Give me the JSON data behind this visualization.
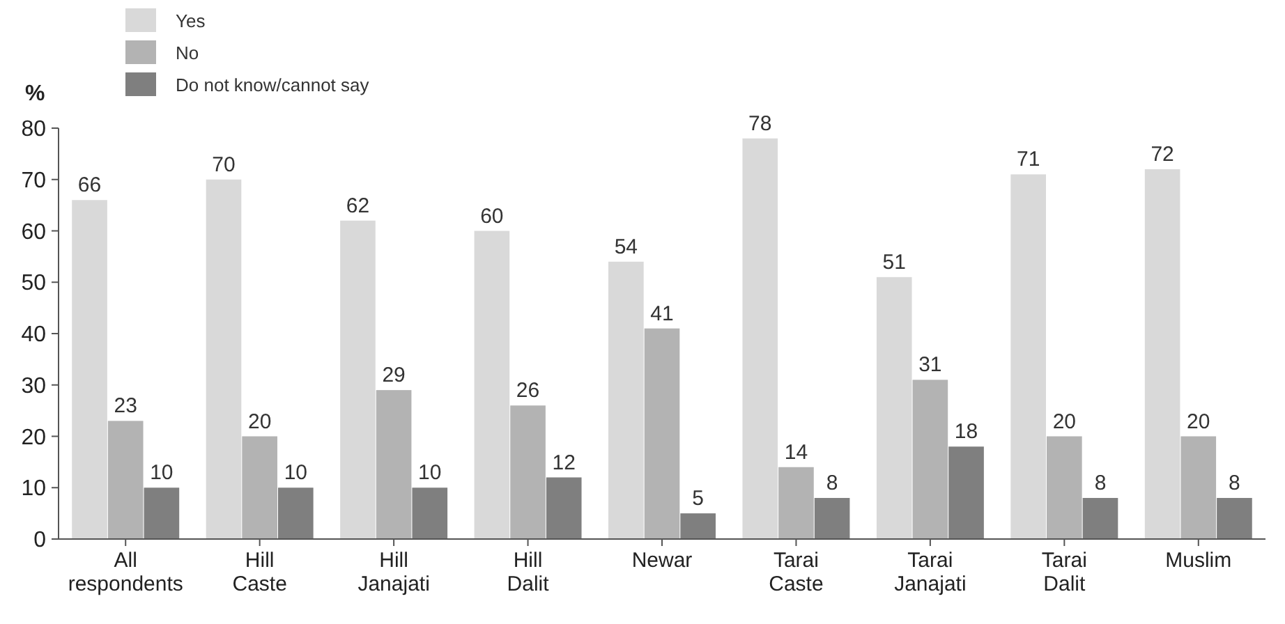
{
  "chart_data": {
    "type": "bar",
    "ylabel": "%",
    "categories": [
      "All respondents",
      "Hill Caste",
      "Hill Janajati",
      "Hill Dalit",
      "Newar",
      "Tarai Caste",
      "Tarai Janajati",
      "Tarai Dalit",
      "Muslim"
    ],
    "series": [
      {
        "name": "Yes",
        "color": "#d9d9d9",
        "values": [
          66,
          70,
          62,
          60,
          54,
          78,
          51,
          71,
          72
        ]
      },
      {
        "name": "No",
        "color": "#b3b3b3",
        "values": [
          23,
          20,
          29,
          26,
          41,
          14,
          31,
          20,
          20
        ]
      },
      {
        "name": "Do not know/cannot say",
        "color": "#7f7f7f",
        "values": [
          10,
          10,
          10,
          12,
          5,
          8,
          18,
          8,
          8
        ]
      }
    ],
    "ylim": [
      0,
      80
    ],
    "yticks": [
      0,
      10,
      20,
      30,
      40,
      50,
      60,
      70,
      80
    ],
    "data_labels": true,
    "legend": "top left",
    "grid": false
  }
}
